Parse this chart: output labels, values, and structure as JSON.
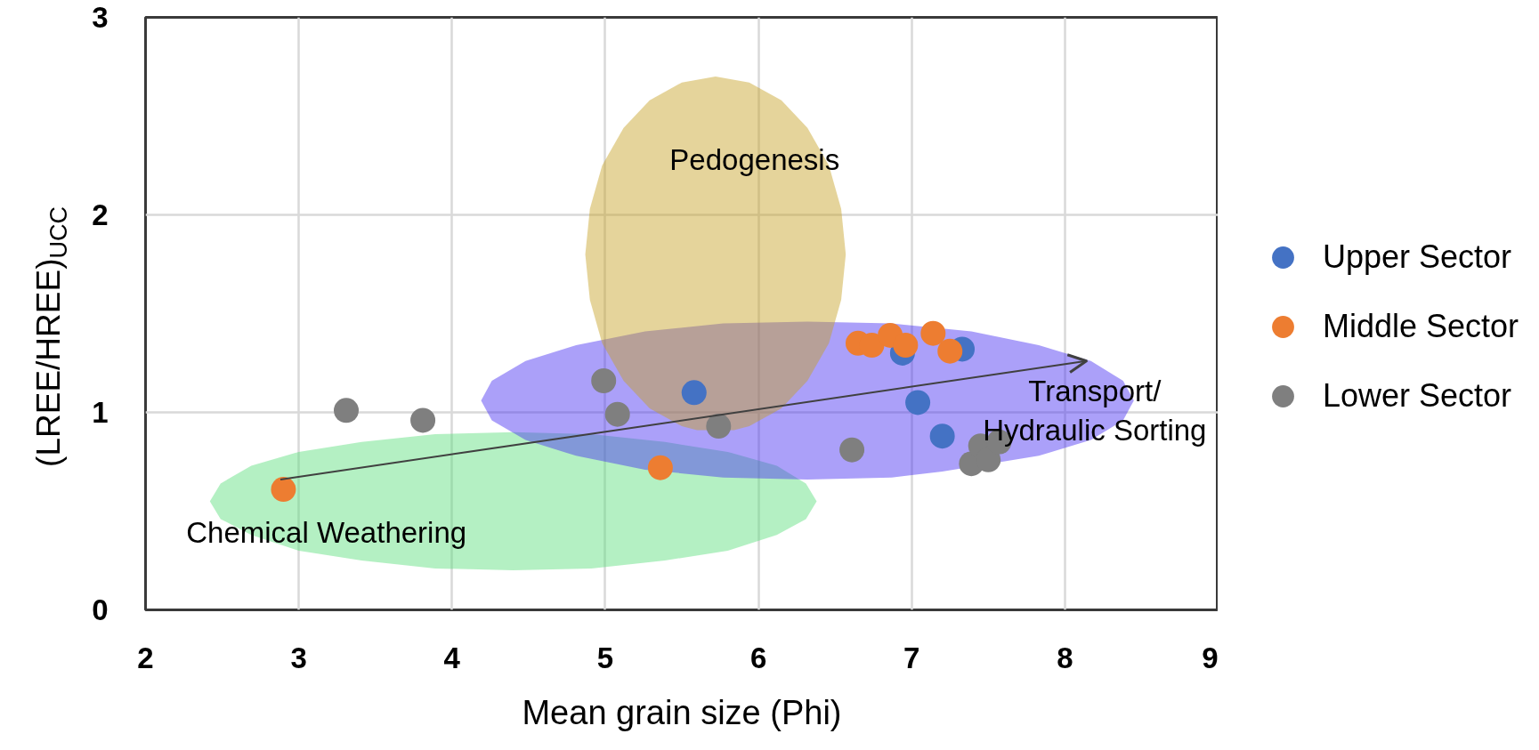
{
  "chart_data": {
    "type": "scatter",
    "xlabel": "Mean grain size (Phi)",
    "ylabel": "(LREE/HREE)$_{UCC}$",
    "xlim": [
      2,
      9
    ],
    "ylim": [
      0,
      3
    ],
    "xticks": [
      2,
      3,
      4,
      5,
      6,
      7,
      8,
      9
    ],
    "yticks": [
      0,
      1,
      2,
      3
    ],
    "grid": true,
    "legend": "right",
    "series": [
      {
        "type": "area",
        "name": "Chemical Weathering",
        "color": "#b4f0c3",
        "x": [
          6.38,
          6.31,
          6.12,
          5.8,
          5.39,
          4.91,
          4.4,
          3.89,
          3.41,
          3.0,
          2.69,
          2.49,
          2.42,
          2.49,
          2.69,
          3.0,
          3.41,
          3.89,
          4.4,
          4.91,
          5.39,
          5.8,
          6.12,
          6.31
        ],
        "values": [
          0.55,
          0.64,
          0.73,
          0.8,
          0.85,
          0.89,
          0.9,
          0.89,
          0.85,
          0.8,
          0.73,
          0.64,
          0.55,
          0.46,
          0.38,
          0.3,
          0.25,
          0.21,
          0.2,
          0.21,
          0.25,
          0.3,
          0.38,
          0.46
        ]
      },
      {
        "type": "area",
        "name": "Transport/\nHydraulic Sorting",
        "color": "#aba0f9",
        "x": [
          8.45,
          8.38,
          8.17,
          7.83,
          7.39,
          6.87,
          6.32,
          5.77,
          5.26,
          4.81,
          4.48,
          4.26,
          4.19,
          4.26,
          4.48,
          4.81,
          5.26,
          5.77,
          6.32,
          6.87,
          7.2,
          7.83,
          8.17,
          8.38
        ],
        "values": [
          1.06,
          1.16,
          1.26,
          1.34,
          1.41,
          1.45,
          1.46,
          1.45,
          1.41,
          1.34,
          1.26,
          1.16,
          1.06,
          0.96,
          0.86,
          0.78,
          0.71,
          0.67,
          0.66,
          0.67,
          0.7,
          0.78,
          0.86,
          0.96
        ]
      },
      {
        "type": "area",
        "name": "Pedogenesis",
        "color": "#e5d49b",
        "x": [
          6.57,
          6.54,
          6.46,
          6.32,
          6.15,
          5.94,
          5.72,
          5.5,
          5.29,
          5.12,
          4.98,
          4.9,
          4.87,
          4.9,
          4.98,
          5.12,
          5.29,
          5.5,
          5.6,
          5.84,
          5.94,
          6.15,
          6.32,
          6.46,
          6.54
        ],
        "values": [
          1.8,
          2.03,
          2.25,
          2.44,
          2.58,
          2.67,
          2.7,
          2.67,
          2.58,
          2.44,
          2.25,
          2.03,
          1.8,
          1.57,
          1.35,
          1.16,
          1.02,
          0.93,
          0.91,
          0.91,
          0.93,
          1.02,
          1.16,
          1.35,
          1.57
        ]
      },
      {
        "name": "Upper Sector",
        "marker": "circle",
        "color": "#4472c4",
        "x": [
          5.58,
          6.94,
          7.04,
          7.2,
          7.33
        ],
        "values": [
          1.1,
          1.3,
          1.05,
          0.88,
          1.32
        ]
      },
      {
        "name": "Middle Sector",
        "marker": "circle",
        "color": "#ed7d31",
        "x": [
          2.9,
          5.36,
          6.65,
          6.74,
          6.86,
          6.96,
          7.14,
          7.25
        ],
        "values": [
          0.61,
          0.72,
          1.35,
          1.34,
          1.39,
          1.34,
          1.4,
          1.31
        ]
      },
      {
        "name": "Lower Sector",
        "marker": "circle",
        "color": "#7f7f7f",
        "x": [
          3.31,
          3.81,
          4.99,
          5.08,
          5.74,
          6.61,
          7.39,
          7.45,
          7.5,
          7.57
        ],
        "values": [
          1.01,
          0.96,
          1.16,
          0.99,
          0.93,
          0.81,
          0.74,
          0.83,
          0.76,
          0.85
        ]
      },
      {
        "type": "line",
        "color": "#404040",
        "x": [
          2.88,
          8.14
        ],
        "values": [
          0.66,
          1.26
        ]
      }
    ]
  }
}
